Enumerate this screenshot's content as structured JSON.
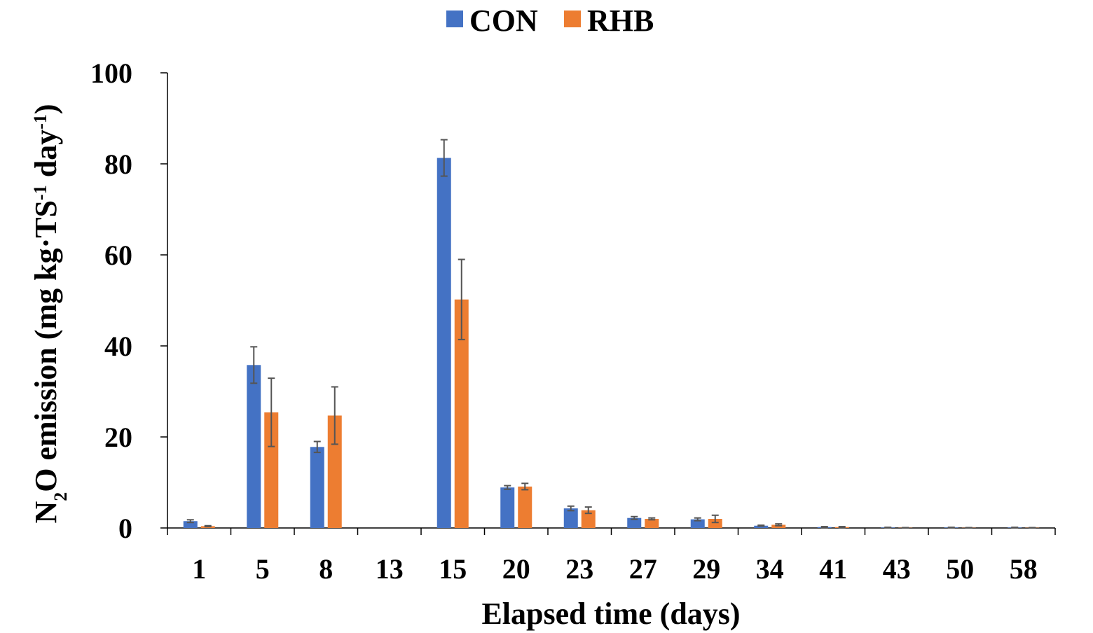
{
  "chart_data": {
    "type": "bar",
    "xlabel": "Elapsed time (days)",
    "ylabel": {
      "parts": [
        {
          "text": "N",
          "sup": false,
          "sub": false
        },
        {
          "text": "2",
          "sup": false,
          "sub": true
        },
        {
          "text": "O emission (mg kg·TS",
          "sup": false,
          "sub": false
        },
        {
          "text": "-1",
          "sup": true,
          "sub": false
        },
        {
          "text": " day",
          "sup": false,
          "sub": false
        },
        {
          "text": "-1",
          "sup": true,
          "sub": false
        },
        {
          "text": ")",
          "sup": false,
          "sub": false
        }
      ]
    },
    "ylim": [
      0,
      100
    ],
    "yticks": [
      0,
      20,
      40,
      60,
      80,
      100
    ],
    "categories": [
      "1",
      "5",
      "8",
      "13",
      "15",
      "20",
      "23",
      "27",
      "29",
      "34",
      "41",
      "43",
      "50",
      "58"
    ],
    "series": [
      {
        "name": "CON",
        "color": "#4472C4",
        "values": [
          1.5,
          35.8,
          17.8,
          0,
          81.3,
          8.9,
          4.3,
          2.2,
          1.9,
          0.5,
          0.2,
          0.1,
          0.1,
          0.1
        ],
        "errors": [
          0.3,
          4.0,
          1.2,
          0,
          4.0,
          0.4,
          0.5,
          0.3,
          0.3,
          0.1,
          0.1,
          0.05,
          0.05,
          0.05
        ]
      },
      {
        "name": "RHB",
        "color": "#ED7D31",
        "values": [
          0.4,
          25.4,
          24.7,
          0,
          50.2,
          9.1,
          3.9,
          2.0,
          2.0,
          0.7,
          0.2,
          0.05,
          0.05,
          0.05
        ],
        "errors": [
          0.1,
          7.5,
          6.3,
          0,
          8.8,
          0.7,
          0.7,
          0.2,
          0.8,
          0.2,
          0.1,
          0.03,
          0.03,
          0.03
        ]
      }
    ],
    "legend": "top-center",
    "grid": false
  }
}
